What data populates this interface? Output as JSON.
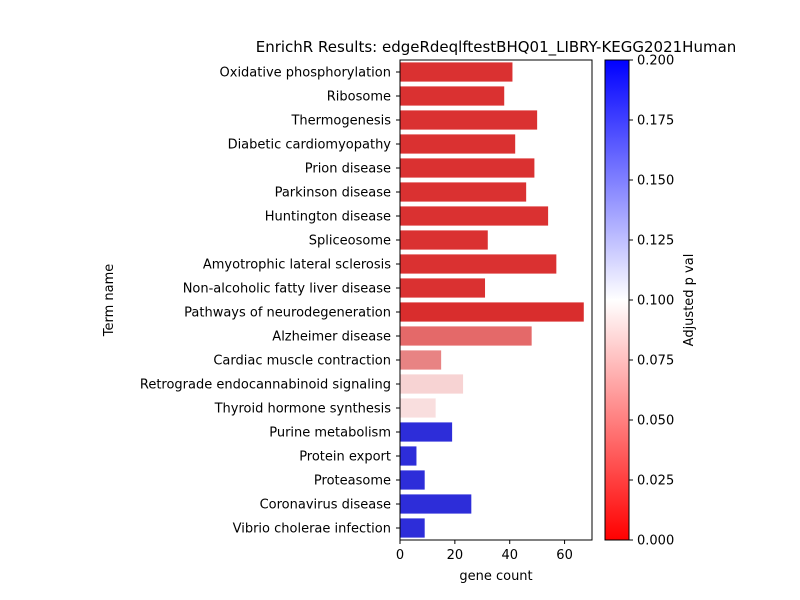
{
  "chart_data": {
    "type": "bar",
    "orientation": "horizontal",
    "title": "EnrichR Results: edgeRdeqlftestBHQ01_LIBRY-KEGG2021Human",
    "xlabel": "gene count",
    "ylabel": "Term name",
    "xlim": [
      0,
      70
    ],
    "xticks": [
      "0",
      "20",
      "40",
      "60"
    ],
    "grid": false,
    "colorbar": {
      "label": "Adjusted p val",
      "range": [
        0,
        0.2
      ],
      "ticks": [
        "0.000",
        "0.025",
        "0.050",
        "0.075",
        "0.100",
        "0.125",
        "0.150",
        "0.175",
        "0.200"
      ],
      "colors": [
        "#ff0000",
        "#ffffff",
        "#0000ff"
      ]
    },
    "categories": [
      "Oxidative phosphorylation",
      "Ribosome",
      "Thermogenesis",
      "Diabetic cardiomyopathy",
      "Prion disease",
      "Parkinson disease",
      "Huntington disease",
      "Spliceosome",
      "Amyotrophic lateral sclerosis",
      "Non-alcoholic fatty liver disease",
      "Pathways of neurodegeneration",
      "Alzheimer disease",
      "Cardiac muscle contraction",
      "Retrograde endocannabinoid signaling",
      "Thyroid hormone synthesis",
      "Purine metabolism",
      "Protein export",
      "Proteasome",
      "Coronavirus disease",
      "Vibrio cholerae infection"
    ],
    "values": [
      41,
      38,
      50,
      42,
      49,
      46,
      54,
      32,
      57,
      31,
      67,
      48,
      15,
      23,
      13,
      19,
      6,
      9,
      26,
      9
    ],
    "adjusted_p": [
      0.012,
      0.012,
      0.012,
      0.012,
      0.012,
      0.012,
      0.012,
      0.012,
      0.012,
      0.012,
      0.01,
      0.036,
      0.047,
      0.081,
      0.086,
      0.19,
      0.19,
      0.19,
      0.19,
      0.19
    ]
  }
}
